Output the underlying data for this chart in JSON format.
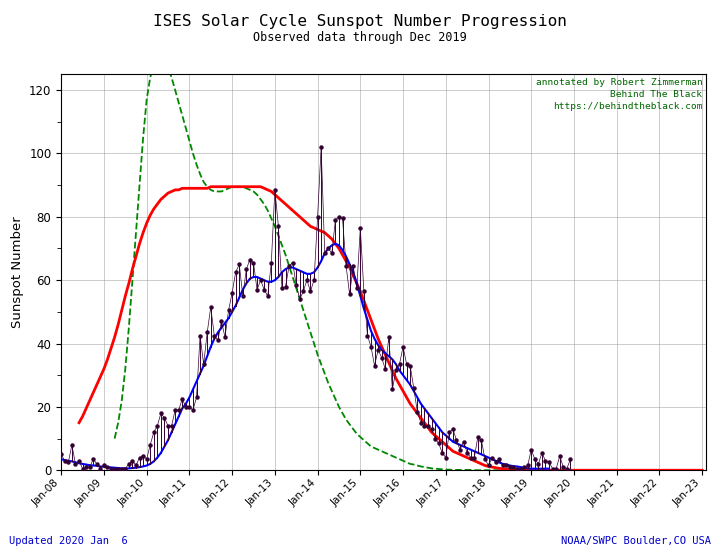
{
  "title": "ISES Solar Cycle Sunspot Number Progression",
  "subtitle": "Observed data through Dec 2019",
  "ylabel": "Sunspot Number",
  "annotation_text": "annotated by Robert Zimmerman\nBehind The Black\nhttps://behindtheblack.com",
  "annotation_color": "#006600",
  "footer_left": "Updated 2020 Jan  6",
  "footer_right": "NOAA/SWPC Boulder,CO USA",
  "footer_color": "#0000cc",
  "xlim_start": 2008.0,
  "xlim_end": 2023.08,
  "ylim": [
    0,
    125
  ],
  "yticks": [
    0,
    20,
    40,
    60,
    80,
    100,
    120
  ],
  "xtick_years": [
    2008,
    2009,
    2010,
    2011,
    2012,
    2013,
    2014,
    2015,
    2016,
    2017,
    2018,
    2019,
    2020,
    2021,
    2022,
    2023
  ],
  "bg_color": "#ffffff",
  "grid_color": "#888888",
  "smoothed_color": "#0000ff",
  "monthly_color": "#330033",
  "predicted_color": "#ff0000",
  "predicted_cycle24_color": "#008800",
  "smoothed_monthly": {
    "x": [
      2008.0,
      2008.083,
      2008.167,
      2008.25,
      2008.333,
      2008.417,
      2008.5,
      2008.583,
      2008.667,
      2008.75,
      2008.833,
      2008.917,
      2009.0,
      2009.083,
      2009.167,
      2009.25,
      2009.333,
      2009.417,
      2009.5,
      2009.583,
      2009.667,
      2009.75,
      2009.833,
      2009.917,
      2010.0,
      2010.083,
      2010.167,
      2010.25,
      2010.333,
      2010.417,
      2010.5,
      2010.583,
      2010.667,
      2010.75,
      2010.833,
      2010.917,
      2011.0,
      2011.083,
      2011.167,
      2011.25,
      2011.333,
      2011.417,
      2011.5,
      2011.583,
      2011.667,
      2011.75,
      2011.833,
      2011.917,
      2012.0,
      2012.083,
      2012.167,
      2012.25,
      2012.333,
      2012.417,
      2012.5,
      2012.583,
      2012.667,
      2012.75,
      2012.833,
      2012.917,
      2013.0,
      2013.083,
      2013.167,
      2013.25,
      2013.333,
      2013.417,
      2013.5,
      2013.583,
      2013.667,
      2013.75,
      2013.833,
      2013.917,
      2014.0,
      2014.083,
      2014.167,
      2014.25,
      2014.333,
      2014.417,
      2014.5,
      2014.583,
      2014.667,
      2014.75,
      2014.833,
      2014.917,
      2015.0,
      2015.083,
      2015.167,
      2015.25,
      2015.333,
      2015.417,
      2015.5,
      2015.583,
      2015.667,
      2015.75,
      2015.833,
      2015.917,
      2016.0,
      2016.083,
      2016.167,
      2016.25,
      2016.333,
      2016.417,
      2016.5,
      2016.583,
      2016.667,
      2016.75,
      2016.833,
      2016.917,
      2017.0,
      2017.083,
      2017.167,
      2017.25,
      2017.333,
      2017.417,
      2017.5,
      2017.583,
      2017.667,
      2017.75,
      2017.833,
      2017.917,
      2018.0,
      2018.083,
      2018.167,
      2018.25,
      2018.333,
      2018.417,
      2018.5,
      2018.583,
      2018.667,
      2018.75,
      2018.833,
      2018.917,
      2019.0,
      2019.083,
      2019.167,
      2019.25,
      2019.333,
      2019.417
    ],
    "y": [
      3.5,
      3.2,
      3.0,
      2.8,
      2.5,
      2.2,
      2.0,
      1.8,
      1.6,
      1.5,
      1.4,
      1.2,
      1.1,
      1.0,
      0.9,
      0.8,
      0.7,
      0.6,
      0.6,
      0.6,
      0.7,
      0.8,
      1.0,
      1.2,
      1.5,
      2.0,
      2.8,
      4.0,
      5.5,
      7.5,
      9.5,
      12.0,
      14.5,
      17.0,
      19.5,
      21.0,
      23.0,
      25.5,
      28.0,
      30.5,
      33.0,
      36.0,
      39.0,
      41.5,
      43.5,
      45.0,
      46.5,
      48.0,
      50.0,
      52.0,
      54.5,
      57.0,
      59.0,
      60.5,
      61.0,
      61.0,
      60.5,
      60.0,
      59.5,
      59.5,
      60.0,
      61.0,
      62.5,
      63.5,
      64.0,
      64.0,
      63.5,
      63.0,
      62.5,
      62.0,
      62.0,
      62.5,
      64.0,
      66.0,
      68.5,
      70.0,
      71.0,
      71.5,
      71.0,
      69.5,
      67.5,
      65.0,
      62.5,
      59.0,
      55.0,
      51.0,
      47.5,
      44.0,
      41.5,
      39.5,
      38.0,
      37.0,
      36.0,
      35.0,
      33.5,
      31.5,
      30.0,
      28.5,
      27.0,
      25.0,
      23.0,
      21.0,
      19.5,
      18.0,
      16.5,
      15.0,
      13.5,
      12.0,
      11.0,
      10.0,
      9.0,
      8.5,
      8.0,
      7.5,
      7.0,
      6.5,
      6.0,
      5.5,
      5.0,
      4.5,
      4.0,
      3.5,
      3.0,
      2.5,
      2.0,
      1.8,
      1.5,
      1.3,
      1.2,
      1.0,
      0.8,
      0.6,
      0.5,
      0.5,
      0.5,
      0.5,
      0.5,
      0.5
    ]
  },
  "monthly_values": {
    "x": [
      2008.0,
      2008.083,
      2008.167,
      2008.25,
      2008.333,
      2008.417,
      2008.5,
      2008.583,
      2008.667,
      2008.75,
      2008.833,
      2008.917,
      2009.0,
      2009.083,
      2009.167,
      2009.25,
      2009.333,
      2009.417,
      2009.5,
      2009.583,
      2009.667,
      2009.75,
      2009.833,
      2009.917,
      2010.0,
      2010.083,
      2010.167,
      2010.25,
      2010.333,
      2010.417,
      2010.5,
      2010.583,
      2010.667,
      2010.75,
      2010.833,
      2010.917,
      2011.0,
      2011.083,
      2011.167,
      2011.25,
      2011.333,
      2011.417,
      2011.5,
      2011.583,
      2011.667,
      2011.75,
      2011.833,
      2011.917,
      2012.0,
      2012.083,
      2012.167,
      2012.25,
      2012.333,
      2012.417,
      2012.5,
      2012.583,
      2012.667,
      2012.75,
      2012.833,
      2012.917,
      2013.0,
      2013.083,
      2013.167,
      2013.25,
      2013.333,
      2013.417,
      2013.5,
      2013.583,
      2013.667,
      2013.75,
      2013.833,
      2013.917,
      2014.0,
      2014.083,
      2014.167,
      2014.25,
      2014.333,
      2014.417,
      2014.5,
      2014.583,
      2014.667,
      2014.75,
      2014.833,
      2014.917,
      2015.0,
      2015.083,
      2015.167,
      2015.25,
      2015.333,
      2015.417,
      2015.5,
      2015.583,
      2015.667,
      2015.75,
      2015.833,
      2015.917,
      2016.0,
      2016.083,
      2016.167,
      2016.25,
      2016.333,
      2016.417,
      2016.5,
      2016.583,
      2016.667,
      2016.75,
      2016.833,
      2016.917,
      2017.0,
      2017.083,
      2017.167,
      2017.25,
      2017.333,
      2017.417,
      2017.5,
      2017.583,
      2017.667,
      2017.75,
      2017.833,
      2017.917,
      2018.0,
      2018.083,
      2018.167,
      2018.25,
      2018.333,
      2018.417,
      2018.5,
      2018.583,
      2018.667,
      2018.75,
      2018.833,
      2018.917,
      2019.0,
      2019.083,
      2019.167,
      2019.25,
      2019.333,
      2019.417,
      2019.5,
      2019.583,
      2019.667,
      2019.75,
      2019.833,
      2019.917
    ],
    "y": [
      5.0,
      3.0,
      2.5,
      8.0,
      2.0,
      3.0,
      0.5,
      1.0,
      1.0,
      3.5,
      2.0,
      0.5,
      1.5,
      1.0,
      0.5,
      0.5,
      0.5,
      0.5,
      0.5,
      2.0,
      3.0,
      1.5,
      4.0,
      4.5,
      3.5,
      8.0,
      12.0,
      14.0,
      18.0,
      16.5,
      14.0,
      14.0,
      19.0,
      19.0,
      22.5,
      20.0,
      20.0,
      19.0,
      23.0,
      42.5,
      33.5,
      43.5,
      51.5,
      42.5,
      41.0,
      47.0,
      42.0,
      50.5,
      56.0,
      62.5,
      65.0,
      55.0,
      63.5,
      66.5,
      65.5,
      57.0,
      60.0,
      57.0,
      55.0,
      65.5,
      88.5,
      77.0,
      57.5,
      58.0,
      64.5,
      65.5,
      58.5,
      54.0,
      56.5,
      60.0,
      56.5,
      60.0,
      80.0,
      102.0,
      68.5,
      70.0,
      68.5,
      79.0,
      80.0,
      79.5,
      64.5,
      55.5,
      64.5,
      57.5,
      76.5,
      56.5,
      42.5,
      39.0,
      33.0,
      38.0,
      35.5,
      32.0,
      42.0,
      25.5,
      31.5,
      33.5,
      39.0,
      33.5,
      33.0,
      26.0,
      18.5,
      15.0,
      14.0,
      14.0,
      13.0,
      10.0,
      8.5,
      5.5,
      4.0,
      12.0,
      13.0,
      9.5,
      6.5,
      9.0,
      5.5,
      4.0,
      4.0,
      10.5,
      9.5,
      3.5,
      1.5,
      4.0,
      2.5,
      3.5,
      1.5,
      1.5,
      1.0,
      1.0,
      0.5,
      0.5,
      1.0,
      1.5,
      6.5,
      3.5,
      2.0,
      5.5,
      3.0,
      2.5,
      0.5,
      0.5,
      4.5,
      1.0,
      0.5,
      3.5
    ]
  },
  "predicted_values": {
    "x": [
      2008.417,
      2008.5,
      2008.583,
      2008.667,
      2008.75,
      2008.833,
      2008.917,
      2009.0,
      2009.083,
      2009.167,
      2009.25,
      2009.333,
      2009.417,
      2009.5,
      2009.583,
      2009.667,
      2009.75,
      2009.833,
      2009.917,
      2010.0,
      2010.083,
      2010.167,
      2010.25,
      2010.333,
      2010.417,
      2010.5,
      2010.583,
      2010.667,
      2010.75,
      2010.833,
      2010.917,
      2011.0,
      2011.083,
      2011.167,
      2011.25,
      2011.333,
      2011.417,
      2011.5,
      2011.583,
      2011.667,
      2011.75,
      2011.833,
      2011.917,
      2012.0,
      2012.083,
      2012.167,
      2012.25,
      2012.333,
      2012.417,
      2012.5,
      2012.583,
      2012.667,
      2012.75,
      2012.833,
      2012.917,
      2013.0,
      2013.083,
      2013.167,
      2013.25,
      2013.333,
      2013.417,
      2013.5,
      2013.583,
      2013.667,
      2013.75,
      2013.833,
      2013.917,
      2014.0,
      2014.083,
      2014.167,
      2014.25,
      2014.333,
      2014.417,
      2014.5,
      2014.583,
      2014.667,
      2014.75,
      2014.833,
      2014.917,
      2015.0,
      2015.083,
      2015.167,
      2015.25,
      2015.333,
      2015.417,
      2015.5,
      2015.583,
      2015.667,
      2015.75,
      2015.833,
      2015.917,
      2016.0,
      2016.083,
      2016.167,
      2016.25,
      2016.333,
      2016.417,
      2016.5,
      2016.583,
      2016.667,
      2016.75,
      2016.833,
      2016.917,
      2017.0,
      2017.083,
      2017.167,
      2017.25,
      2017.333,
      2017.417,
      2017.5,
      2017.583,
      2017.667,
      2017.75,
      2017.833,
      2017.917,
      2018.0,
      2018.083,
      2018.167,
      2018.25,
      2018.333,
      2018.417,
      2018.5,
      2018.583,
      2018.667,
      2018.75,
      2018.833,
      2018.917,
      2019.0,
      2019.083,
      2019.167,
      2019.25,
      2019.333,
      2019.417,
      2019.5,
      2019.583,
      2019.667,
      2019.75,
      2019.833,
      2019.917,
      2020.0,
      2020.083,
      2020.167,
      2020.25,
      2020.333,
      2020.417,
      2020.5,
      2020.583,
      2020.667,
      2020.75,
      2020.833,
      2020.917,
      2021.0,
      2021.083,
      2021.167,
      2021.25,
      2021.333,
      2021.417,
      2021.5,
      2021.583,
      2021.667,
      2021.75,
      2021.833,
      2021.917,
      2022.0,
      2022.083,
      2022.167,
      2022.25,
      2022.333,
      2022.417,
      2022.5,
      2022.583,
      2022.667,
      2022.75,
      2022.833,
      2022.917,
      2023.0
    ],
    "y": [
      15.0,
      17.0,
      19.5,
      22.0,
      24.5,
      27.0,
      29.5,
      32.0,
      35.0,
      38.5,
      42.0,
      46.0,
      50.5,
      55.0,
      59.0,
      63.5,
      67.5,
      71.5,
      75.0,
      78.0,
      80.5,
      82.5,
      84.0,
      85.5,
      86.5,
      87.5,
      88.0,
      88.5,
      88.5,
      89.0,
      89.0,
      89.0,
      89.0,
      89.0,
      89.0,
      89.0,
      89.0,
      89.5,
      89.5,
      89.5,
      89.5,
      89.5,
      89.5,
      89.5,
      89.5,
      89.5,
      89.5,
      89.5,
      89.5,
      89.5,
      89.5,
      89.5,
      89.0,
      88.5,
      88.0,
      87.0,
      86.0,
      85.0,
      84.0,
      83.0,
      82.0,
      81.0,
      80.0,
      79.0,
      78.0,
      77.0,
      76.5,
      76.0,
      75.5,
      75.0,
      74.0,
      73.0,
      71.5,
      70.0,
      68.0,
      66.0,
      64.0,
      61.5,
      59.0,
      56.5,
      53.5,
      50.5,
      47.5,
      44.5,
      41.5,
      39.0,
      36.5,
      34.0,
      31.5,
      29.0,
      27.0,
      25.0,
      23.0,
      21.0,
      19.5,
      18.0,
      16.5,
      15.0,
      13.5,
      12.0,
      11.0,
      10.0,
      9.0,
      8.0,
      7.0,
      6.0,
      5.5,
      5.0,
      4.5,
      4.0,
      3.5,
      3.0,
      2.5,
      2.0,
      1.5,
      1.2,
      1.0,
      0.8,
      0.6,
      0.5,
      0.4,
      0.3,
      0.2,
      0.2,
      0.1,
      0.1,
      0.1,
      0.0,
      0.0,
      0.0,
      0.0,
      0.0,
      0.0,
      0.0,
      0.0,
      0.0,
      0.0,
      0.0,
      0.0,
      0.0,
      0.0,
      0.0,
      0.0,
      0.0,
      0.0,
      0.0,
      0.0,
      0.0,
      0.0,
      0.0,
      0.0,
      0.0,
      0.0,
      0.0,
      0.0,
      0.0,
      0.0,
      0.0,
      0.0,
      0.0,
      0.0,
      0.0,
      0.0,
      0.0,
      0.0,
      0.0,
      0.0,
      0.0,
      0.0,
      0.0,
      0.0,
      0.0,
      0.0,
      0.0,
      0.0,
      0.0
    ]
  },
  "cycle24_predicted": {
    "x": [
      2009.25,
      2009.333,
      2009.417,
      2009.5,
      2009.583,
      2009.667,
      2009.75,
      2009.833,
      2009.917,
      2010.0,
      2010.083,
      2010.167,
      2010.25,
      2010.333,
      2010.417,
      2010.5,
      2010.583,
      2010.667,
      2010.75,
      2010.833,
      2010.917,
      2011.0,
      2011.083,
      2011.167,
      2011.25,
      2011.333,
      2011.417,
      2011.5,
      2011.583,
      2011.667,
      2011.75,
      2011.833,
      2011.917,
      2012.0,
      2012.083,
      2012.167,
      2012.25,
      2012.333,
      2012.417,
      2012.5,
      2012.583,
      2012.667,
      2012.75,
      2012.833,
      2012.917,
      2013.0,
      2013.083,
      2013.167,
      2013.25,
      2013.333,
      2013.417,
      2013.5,
      2013.583,
      2013.667,
      2013.75,
      2013.833,
      2013.917,
      2014.0,
      2014.083,
      2014.167,
      2014.25,
      2014.333,
      2014.417,
      2014.5,
      2014.583,
      2014.667,
      2014.75,
      2014.833,
      2014.917,
      2015.0,
      2015.083,
      2015.167,
      2015.25,
      2015.333,
      2015.417,
      2015.5,
      2015.583,
      2015.667,
      2015.75,
      2015.833,
      2015.917,
      2016.0,
      2016.083,
      2016.167,
      2016.25,
      2016.333,
      2016.417,
      2016.5,
      2016.583,
      2016.667,
      2016.75,
      2016.833,
      2016.917,
      2017.0,
      2017.083,
      2017.167,
      2017.25,
      2017.333,
      2017.417,
      2017.5,
      2017.583,
      2017.667,
      2017.75,
      2017.833,
      2017.917,
      2018.0,
      2018.083,
      2018.167,
      2018.25,
      2018.333,
      2018.417,
      2018.5,
      2018.583,
      2018.667,
      2018.75,
      2018.833,
      2018.917,
      2019.0,
      2019.083,
      2019.167,
      2019.25
    ],
    "y": [
      10.0,
      15.0,
      22.0,
      32.0,
      45.0,
      60.0,
      75.0,
      90.0,
      105.0,
      117.0,
      124.0,
      128.0,
      130.0,
      130.0,
      129.0,
      127.0,
      124.0,
      120.0,
      116.0,
      112.0,
      108.0,
      104.0,
      100.0,
      96.5,
      93.5,
      91.0,
      89.5,
      88.5,
      88.0,
      88.0,
      88.0,
      88.5,
      89.0,
      89.5,
      89.5,
      89.5,
      89.5,
      89.0,
      88.5,
      88.0,
      87.0,
      85.5,
      84.0,
      82.0,
      79.5,
      77.0,
      74.0,
      71.0,
      68.0,
      64.5,
      61.0,
      57.5,
      54.0,
      50.5,
      47.0,
      43.5,
      40.0,
      36.5,
      33.5,
      30.5,
      27.5,
      25.0,
      22.5,
      20.0,
      18.0,
      16.0,
      14.5,
      13.0,
      11.5,
      10.5,
      9.5,
      8.5,
      7.5,
      7.0,
      6.5,
      6.0,
      5.5,
      5.0,
      4.5,
      4.0,
      3.5,
      3.0,
      2.5,
      2.0,
      1.8,
      1.5,
      1.2,
      1.0,
      0.8,
      0.6,
      0.5,
      0.4,
      0.3,
      0.2,
      0.2,
      0.1,
      0.1,
      0.1,
      0.1,
      0.1,
      0.1,
      0.0,
      0.0,
      0.0,
      0.0,
      0.0,
      0.0,
      0.0,
      0.0,
      0.0,
      0.0,
      0.0,
      0.0,
      0.0,
      0.0,
      0.0,
      0.0,
      0.0,
      0.0,
      0.0,
      0.0
    ]
  }
}
